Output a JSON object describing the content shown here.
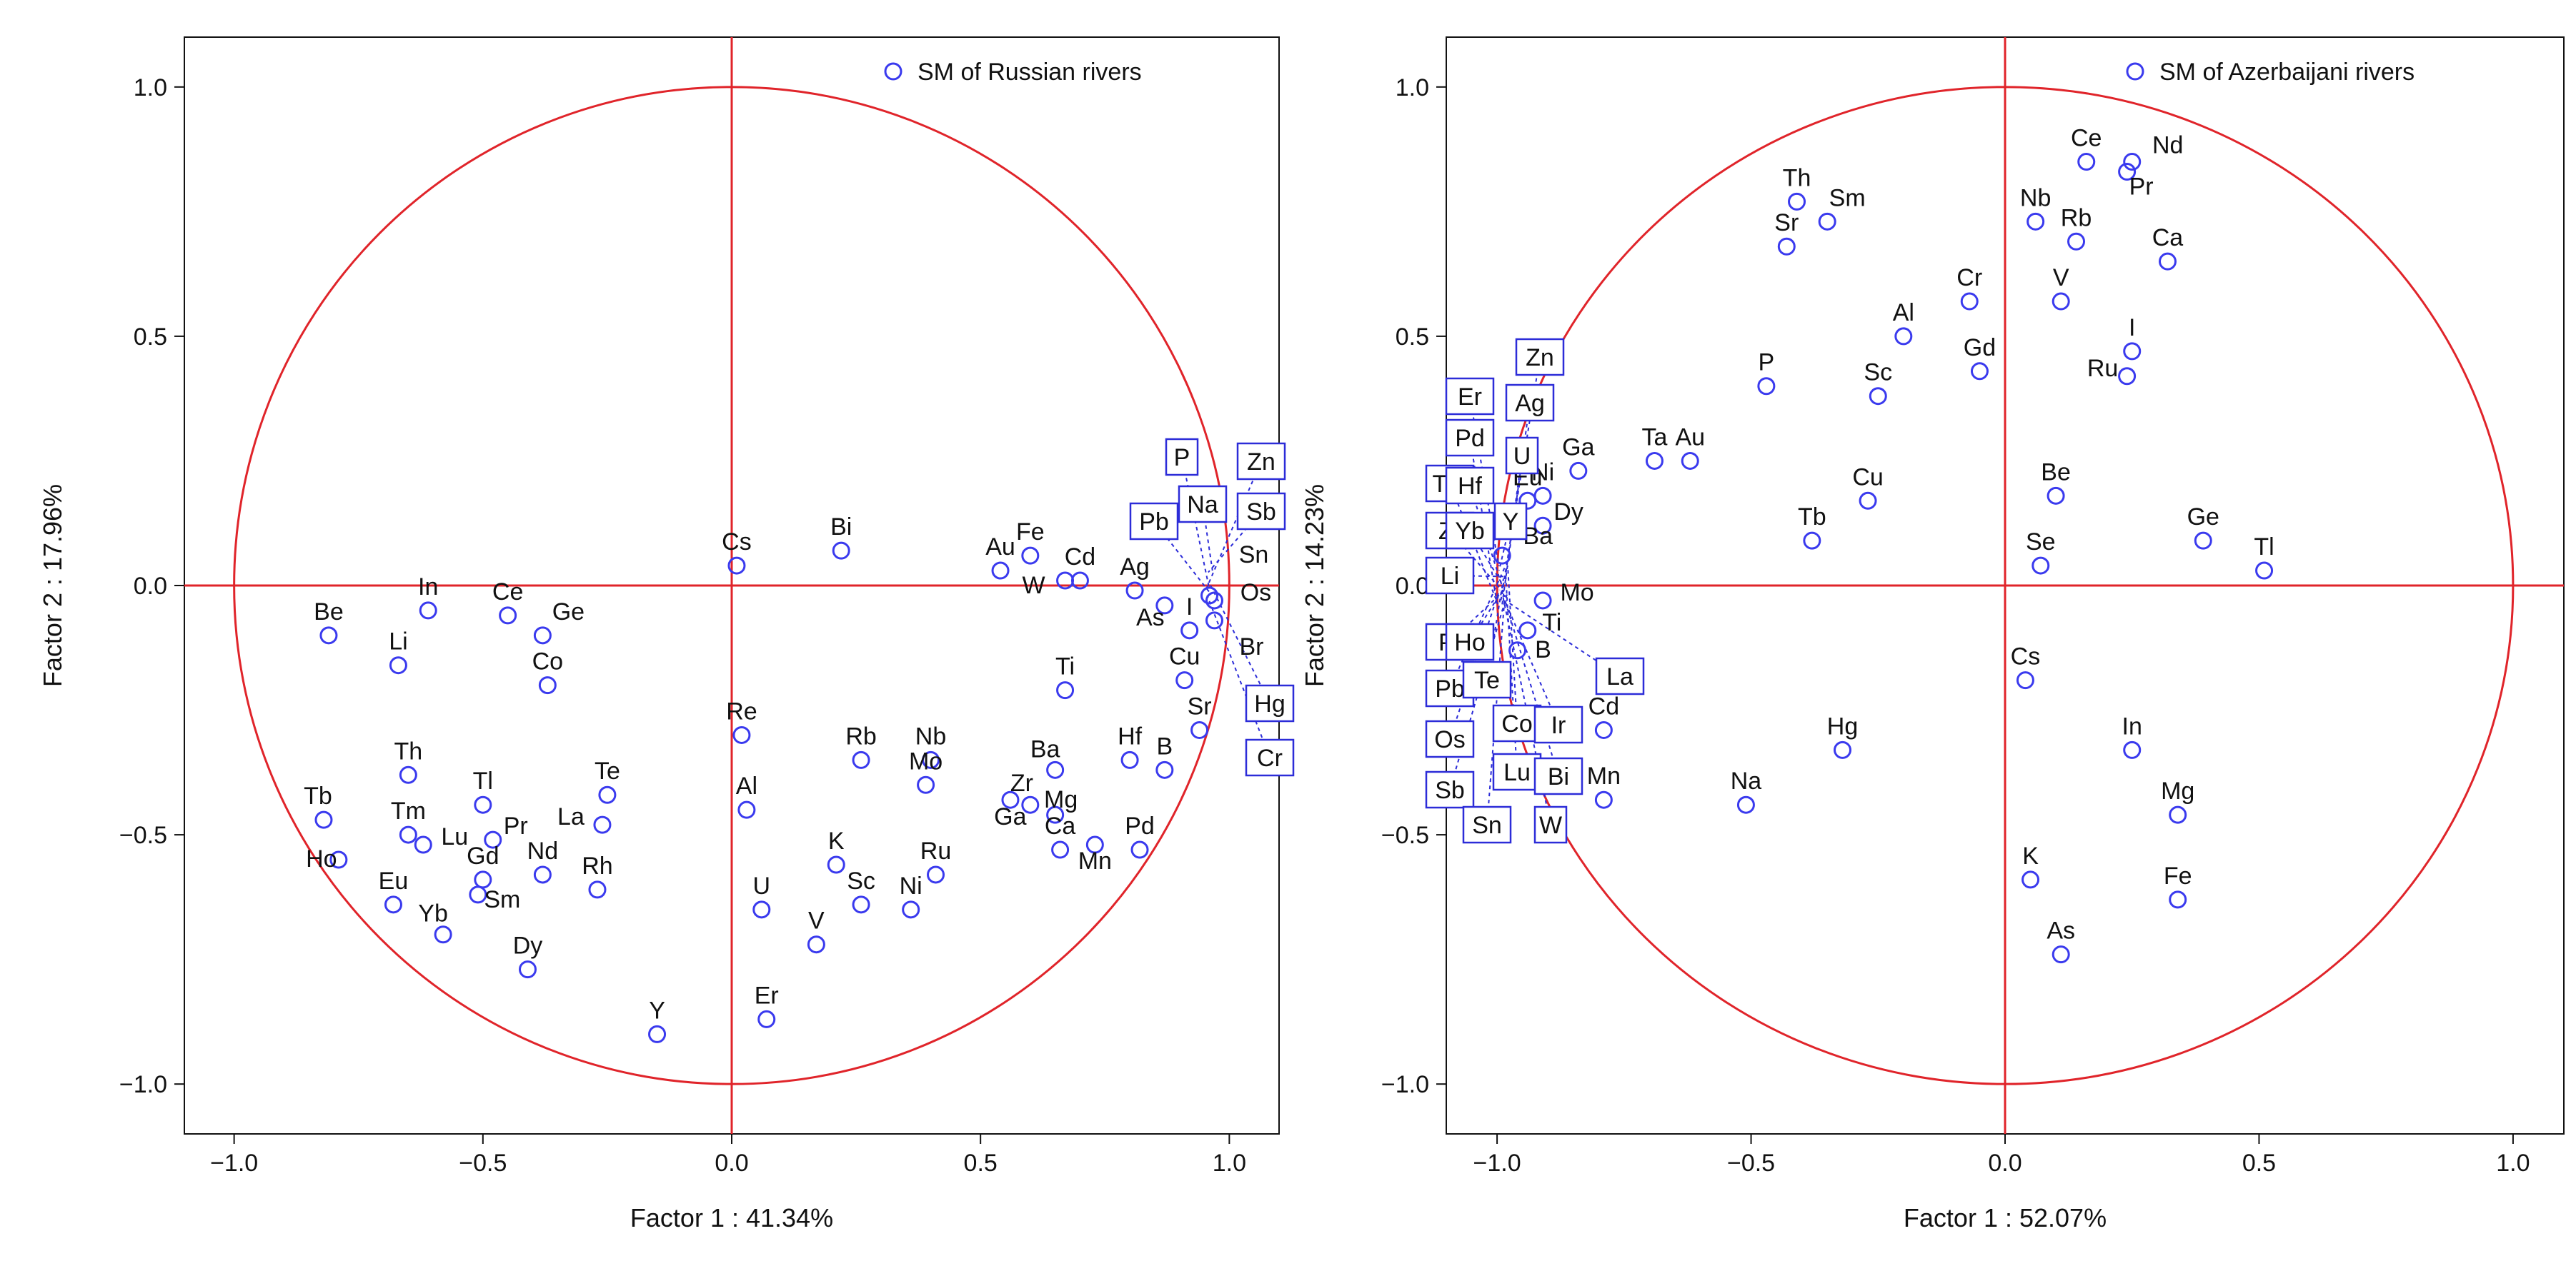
{
  "chart_data": [
    {
      "type": "scatter",
      "title": "",
      "xlabel": "Factor 1 : 41.34%",
      "ylabel": "Factor 2 : 17.96%",
      "xlim": [
        -1.1,
        1.1
      ],
      "ylim": [
        -1.1,
        1.1
      ],
      "xticks": [
        -1.0,
        -0.5,
        0.0,
        0.5,
        1.0
      ],
      "yticks": [
        -1.0,
        -0.5,
        0.0,
        0.5,
        1.0
      ],
      "tick_labels": [
        "−1.0",
        "−0.5",
        "0.0",
        "0.5",
        "1.0"
      ],
      "legend": "SM of Russian rivers",
      "legend_position": "top-right",
      "points": [
        {
          "label": "Be",
          "x": -0.81,
          "y": -0.1
        },
        {
          "label": "In",
          "x": -0.61,
          "y": -0.05
        },
        {
          "label": "Ce",
          "x": -0.45,
          "y": -0.06
        },
        {
          "label": "Ge",
          "x": -0.38,
          "y": -0.1
        },
        {
          "label": "Li",
          "x": -0.67,
          "y": -0.16
        },
        {
          "label": "Co",
          "x": -0.37,
          "y": -0.2
        },
        {
          "label": "Cs",
          "x": 0.01,
          "y": 0.04
        },
        {
          "label": "Bi",
          "x": 0.22,
          "y": 0.07
        },
        {
          "label": "Th",
          "x": -0.65,
          "y": -0.38
        },
        {
          "label": "Tl",
          "x": -0.5,
          "y": -0.44
        },
        {
          "label": "Te",
          "x": -0.25,
          "y": -0.42
        },
        {
          "label": "La",
          "x": -0.26,
          "y": -0.48
        },
        {
          "label": "Tb",
          "x": -0.82,
          "y": -0.47
        },
        {
          "label": "Ho",
          "x": -0.79,
          "y": -0.55
        },
        {
          "label": "Tm",
          "x": -0.65,
          "y": -0.5
        },
        {
          "label": "Lu",
          "x": -0.62,
          "y": -0.52
        },
        {
          "label": "Pr",
          "x": -0.48,
          "y": -0.51
        },
        {
          "label": "Nd",
          "x": -0.38,
          "y": -0.58
        },
        {
          "label": "Rh",
          "x": -0.27,
          "y": -0.61
        },
        {
          "label": "Gd",
          "x": -0.5,
          "y": -0.59
        },
        {
          "label": "Eu",
          "x": -0.68,
          "y": -0.64
        },
        {
          "label": "Sm",
          "x": -0.51,
          "y": -0.62
        },
        {
          "label": "Yb",
          "x": -0.58,
          "y": -0.7
        },
        {
          "label": "Dy",
          "x": -0.41,
          "y": -0.77
        },
        {
          "label": "Y",
          "x": -0.15,
          "y": -0.9
        },
        {
          "label": "Re",
          "x": 0.02,
          "y": -0.3
        },
        {
          "label": "Al",
          "x": 0.03,
          "y": -0.45
        },
        {
          "label": "U",
          "x": 0.06,
          "y": -0.65
        },
        {
          "label": "Er",
          "x": 0.07,
          "y": -0.87
        },
        {
          "label": "Rb",
          "x": 0.26,
          "y": -0.35
        },
        {
          "label": "K",
          "x": 0.21,
          "y": -0.56
        },
        {
          "label": "Sc",
          "x": 0.26,
          "y": -0.64
        },
        {
          "label": "V",
          "x": 0.17,
          "y": -0.72
        },
        {
          "label": "Nb",
          "x": 0.4,
          "y": -0.35
        },
        {
          "label": "Mo",
          "x": 0.39,
          "y": -0.4
        },
        {
          "label": "Ru",
          "x": 0.41,
          "y": -0.58
        },
        {
          "label": "Ni",
          "x": 0.36,
          "y": -0.65
        },
        {
          "label": "Au",
          "x": 0.54,
          "y": 0.03
        },
        {
          "label": "Fe",
          "x": 0.6,
          "y": 0.06
        },
        {
          "label": "Cd",
          "x": 0.7,
          "y": 0.01
        },
        {
          "label": "W",
          "x": 0.67,
          "y": 0.01
        },
        {
          "label": "Ag",
          "x": 0.81,
          "y": -0.01
        },
        {
          "label": "As",
          "x": 0.87,
          "y": -0.04
        },
        {
          "label": "I",
          "x": 0.92,
          "y": -0.09
        },
        {
          "label": "Ti",
          "x": 0.67,
          "y": -0.21
        },
        {
          "label": "Cu",
          "x": 0.91,
          "y": -0.19
        },
        {
          "label": "Ba",
          "x": 0.65,
          "y": -0.37
        },
        {
          "label": "Zr",
          "x": 0.56,
          "y": -0.43
        },
        {
          "label": "Ga",
          "x": 0.6,
          "y": -0.44
        },
        {
          "label": "Mg",
          "x": 0.65,
          "y": -0.46
        },
        {
          "label": "Hf",
          "x": 0.8,
          "y": -0.35
        },
        {
          "label": "B",
          "x": 0.87,
          "y": -0.37
        },
        {
          "label": "Sr",
          "x": 0.94,
          "y": -0.29
        },
        {
          "label": "Ca",
          "x": 0.66,
          "y": -0.53
        },
        {
          "label": "Mn",
          "x": 0.73,
          "y": -0.52
        },
        {
          "label": "Pd",
          "x": 0.82,
          "y": -0.53
        },
        {
          "label": "Os",
          "x": 0.97,
          "y": -0.03
        },
        {
          "label": "Br",
          "x": 0.97,
          "y": -0.07
        },
        {
          "label": "Sn",
          "x": 0.96,
          "y": -0.02
        }
      ],
      "boxed_labels": [
        "P",
        "Zn",
        "Na",
        "Sb",
        "Pb",
        "Hg",
        "Cr"
      ]
    },
    {
      "type": "scatter",
      "title": "",
      "xlabel": "Factor 1 : 52.07%",
      "ylabel": "Factor 2 : 14.23%",
      "xlim": [
        -1.1,
        1.1
      ],
      "ylim": [
        -1.1,
        1.1
      ],
      "xticks": [
        -1.0,
        -0.5,
        0.0,
        0.5,
        1.0
      ],
      "yticks": [
        -1.0,
        -0.5,
        0.0,
        0.5,
        1.0
      ],
      "tick_labels": [
        "−1.0",
        "−0.5",
        "0.0",
        "0.5",
        "1.0"
      ],
      "legend": "SM of Azerbaijani rivers",
      "legend_position": "top-right",
      "points": [
        {
          "label": "Ce",
          "x": 0.16,
          "y": 0.85
        },
        {
          "label": "Nd",
          "x": 0.25,
          "y": 0.85
        },
        {
          "label": "Pr",
          "x": 0.24,
          "y": 0.83
        },
        {
          "label": "Th",
          "x": -0.41,
          "y": 0.77
        },
        {
          "label": "Sm",
          "x": -0.35,
          "y": 0.73
        },
        {
          "label": "Sr",
          "x": -0.43,
          "y": 0.68
        },
        {
          "label": "Nb",
          "x": 0.06,
          "y": 0.73
        },
        {
          "label": "Rb",
          "x": 0.14,
          "y": 0.69
        },
        {
          "label": "Ca",
          "x": 0.32,
          "y": 0.65
        },
        {
          "label": "Cr",
          "x": -0.07,
          "y": 0.57
        },
        {
          "label": "V",
          "x": 0.11,
          "y": 0.57
        },
        {
          "label": "Al",
          "x": -0.2,
          "y": 0.5
        },
        {
          "label": "I",
          "x": 0.25,
          "y": 0.47
        },
        {
          "label": "Ru",
          "x": 0.24,
          "y": 0.42
        },
        {
          "label": "Gd",
          "x": -0.05,
          "y": 0.43
        },
        {
          "label": "P",
          "x": -0.47,
          "y": 0.4
        },
        {
          "label": "Sc",
          "x": -0.25,
          "y": 0.38
        },
        {
          "label": "Ta",
          "x": -0.69,
          "y": 0.25
        },
        {
          "label": "Au",
          "x": -0.62,
          "y": 0.25
        },
        {
          "label": "Ga",
          "x": -0.84,
          "y": 0.23
        },
        {
          "label": "Ni",
          "x": -0.91,
          "y": 0.18
        },
        {
          "label": "Eu",
          "x": -0.94,
          "y": 0.17
        },
        {
          "label": "Dy",
          "x": -0.91,
          "y": 0.12
        },
        {
          "label": "Cu",
          "x": -0.27,
          "y": 0.17
        },
        {
          "label": "Tb",
          "x": -0.38,
          "y": 0.09
        },
        {
          "label": "Be",
          "x": 0.1,
          "y": 0.18
        },
        {
          "label": "Ge",
          "x": 0.39,
          "y": 0.09
        },
        {
          "label": "Tl",
          "x": 0.51,
          "y": 0.03
        },
        {
          "label": "Se",
          "x": 0.07,
          "y": 0.04
        },
        {
          "label": "Ba",
          "x": -0.99,
          "y": 0.06
        },
        {
          "label": "Mo",
          "x": -0.91,
          "y": -0.03
        },
        {
          "label": "Ti",
          "x": -0.94,
          "y": -0.09
        },
        {
          "label": "B",
          "x": -0.96,
          "y": -0.13
        },
        {
          "label": "Cd",
          "x": -0.79,
          "y": -0.29
        },
        {
          "label": "Mn",
          "x": -0.79,
          "y": -0.43
        },
        {
          "label": "Cs",
          "x": 0.04,
          "y": -0.19
        },
        {
          "label": "Hg",
          "x": -0.32,
          "y": -0.33
        },
        {
          "label": "Na",
          "x": -0.51,
          "y": -0.44
        },
        {
          "label": "In",
          "x": 0.25,
          "y": -0.33
        },
        {
          "label": "Mg",
          "x": 0.34,
          "y": -0.46
        },
        {
          "label": "K",
          "x": 0.05,
          "y": -0.59
        },
        {
          "label": "Fe",
          "x": 0.34,
          "y": -0.63
        },
        {
          "label": "As",
          "x": 0.11,
          "y": -0.74
        }
      ],
      "boxed_labels": [
        "Zn",
        "Er",
        "Ag",
        "Pd",
        "U",
        "Tm",
        "Hf",
        "Y",
        "Zr",
        "Yb",
        "Li",
        "Pt",
        "Ho",
        "Pb",
        "Te",
        "Os",
        "Co",
        "Ir",
        "Sb",
        "Lu",
        "Bi",
        "Sn",
        "W",
        "La"
      ]
    }
  ]
}
